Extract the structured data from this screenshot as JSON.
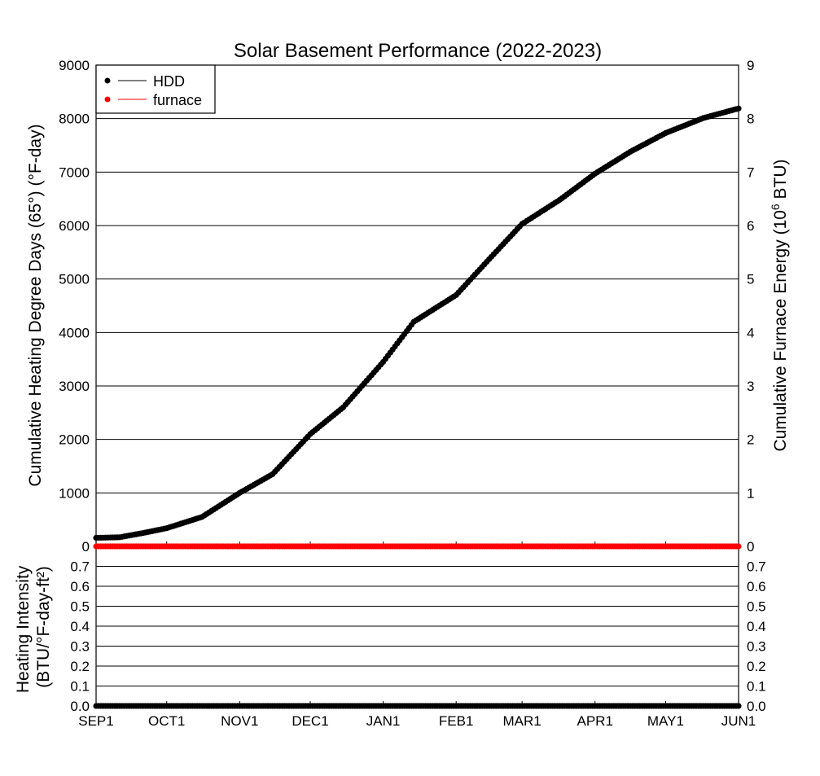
{
  "chart_data": [
    {
      "type": "line",
      "title": "Solar Basement Performance (2022-2023)",
      "ylabel": "Cumulative Heating Degree Days (65°) (°F-day)",
      "y2label": "Cumulative Furnace Energy (10^6 BTU)",
      "ylim": [
        0,
        9000
      ],
      "y2lim": [
        0,
        9
      ],
      "yticks": [
        "0",
        "1000",
        "2000",
        "3000",
        "4000",
        "5000",
        "6000",
        "7000",
        "8000",
        "9000"
      ],
      "y2ticks": [
        "0",
        "1",
        "2",
        "3",
        "4",
        "5",
        "6",
        "7",
        "8",
        "9"
      ],
      "grid": true,
      "legend": "top-left",
      "series": [
        {
          "name": "HDD",
          "color": "#000000",
          "axis": "left",
          "x": [
            "2022-09-01",
            "2022-09-11",
            "2022-09-21",
            "2022-10-01",
            "2022-10-16",
            "2022-11-01",
            "2022-11-15",
            "2022-12-01",
            "2022-12-15",
            "2023-01-01",
            "2023-01-14",
            "2023-02-01",
            "2023-02-15",
            "2023-03-01",
            "2023-03-17",
            "2023-04-01",
            "2023-04-16",
            "2023-05-01",
            "2023-05-17",
            "2023-06-01"
          ],
          "y": [
            160,
            170,
            250,
            340,
            550,
            1000,
            1350,
            2100,
            2600,
            3450,
            4200,
            4700,
            5370,
            6030,
            6480,
            6970,
            7380,
            7730,
            8010,
            8190
          ]
        },
        {
          "name": "furnace",
          "color": "#ff0000",
          "axis": "right",
          "x": [
            "2022-09-01",
            "2023-06-01"
          ],
          "y": [
            0,
            0
          ]
        }
      ]
    },
    {
      "type": "line",
      "ylabel": "Heating Intensity (BTU/°F-day-ft²)",
      "ylim": [
        0,
        0.8
      ],
      "yticks": [
        "0.0",
        "0.1",
        "0.2",
        "0.3",
        "0.4",
        "0.5",
        "0.6",
        "0.7"
      ],
      "xticks": [
        "SEP1",
        "OCT1",
        "NOV1",
        "DEC1",
        "JAN1",
        "FEB1",
        "MAR1",
        "APR1",
        "MAY1",
        "JUN1"
      ],
      "xtick_dates": [
        "2022-09-01",
        "2022-10-01",
        "2022-11-01",
        "2022-12-01",
        "2023-01-01",
        "2023-02-01",
        "2023-03-01",
        "2023-04-01",
        "2023-05-01",
        "2023-06-01"
      ],
      "grid": true,
      "series": [
        {
          "color": "#000000",
          "x": [
            "2022-09-01",
            "2023-06-01"
          ],
          "y": [
            0,
            0
          ]
        }
      ]
    }
  ]
}
